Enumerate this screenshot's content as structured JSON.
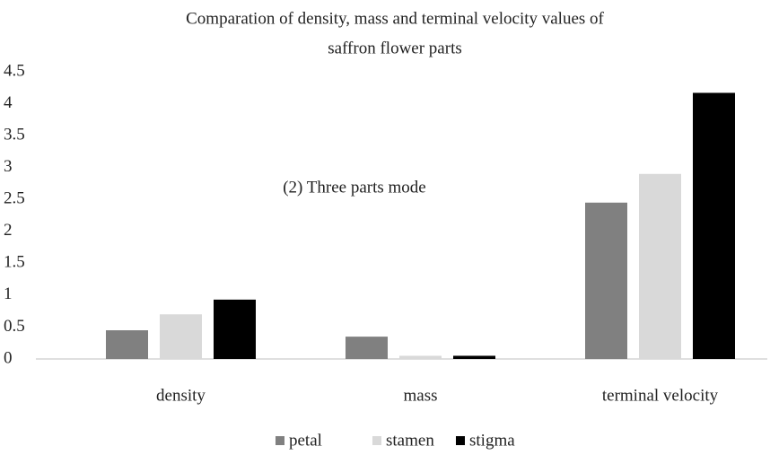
{
  "chart_data": {
    "type": "bar",
    "title": [
      "Comparation of density, mass and terminal velocity values of",
      "saffron flower parts"
    ],
    "annotation": "(2) Three parts mode",
    "categories": [
      "density",
      "mass",
      "terminal velocity"
    ],
    "series": [
      {
        "name": "petal",
        "color": "#808080",
        "values": [
          0.45,
          0.35,
          2.45
        ]
      },
      {
        "name": "stamen",
        "color": "#d9d9d9",
        "values": [
          0.7,
          0.05,
          2.9
        ]
      },
      {
        "name": "stigma",
        "color": "#000000",
        "values": [
          0.93,
          0.05,
          4.17
        ]
      }
    ],
    "ylim": [
      0,
      4.5
    ],
    "yticks": [
      0,
      0.5,
      1,
      1.5,
      2,
      2.5,
      3,
      3.5,
      4,
      4.5
    ],
    "grid": false,
    "legend": "bottom"
  }
}
